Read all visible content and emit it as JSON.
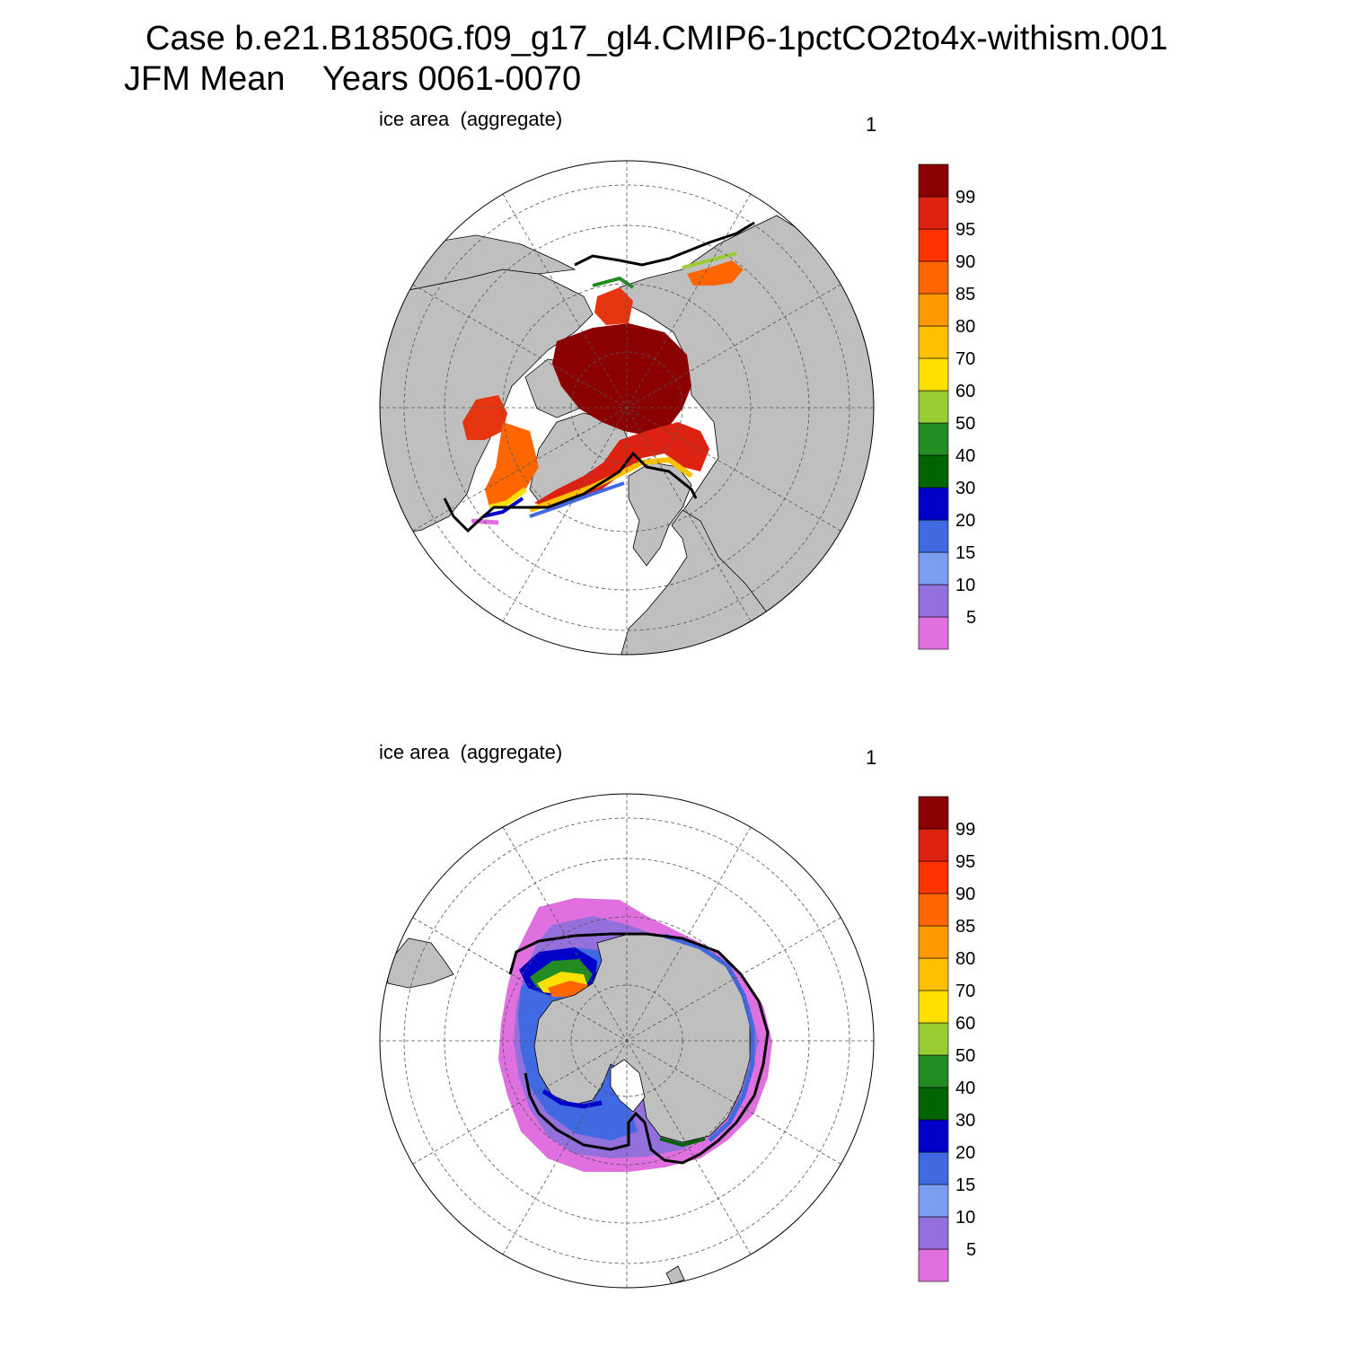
{
  "title": {
    "line1": "Case b.e21.B1850G.f09_g17_gl4.CMIP6-1pctCO2to4x-withism.001",
    "line2": "JFM Mean    Years 0061-0070"
  },
  "panels": [
    {
      "left_label": "ice area  (aggregate)",
      "right_label": "1",
      "hemisphere": "north"
    },
    {
      "left_label": "ice area  (aggregate)",
      "right_label": "1",
      "hemisphere": "south"
    }
  ],
  "colorbar": {
    "tick_labels": [
      "5",
      "10",
      "15",
      "20",
      "30",
      "40",
      "50",
      "60",
      "70",
      "80",
      "85",
      "90",
      "95",
      "99"
    ],
    "colors": [
      "#e070e0",
      "#9370db",
      "#7a9ef0",
      "#4169e1",
      "#0000c8",
      "#006400",
      "#228b22",
      "#9acd32",
      "#ffe000",
      "#ffc000",
      "#ff9900",
      "#ff6600",
      "#ff3300",
      "#dd2211",
      "#8b0000"
    ]
  },
  "map_colors": {
    "land": "#bfbfbf",
    "ocean": "#ffffff",
    "ice_max": "#8b0000"
  }
}
